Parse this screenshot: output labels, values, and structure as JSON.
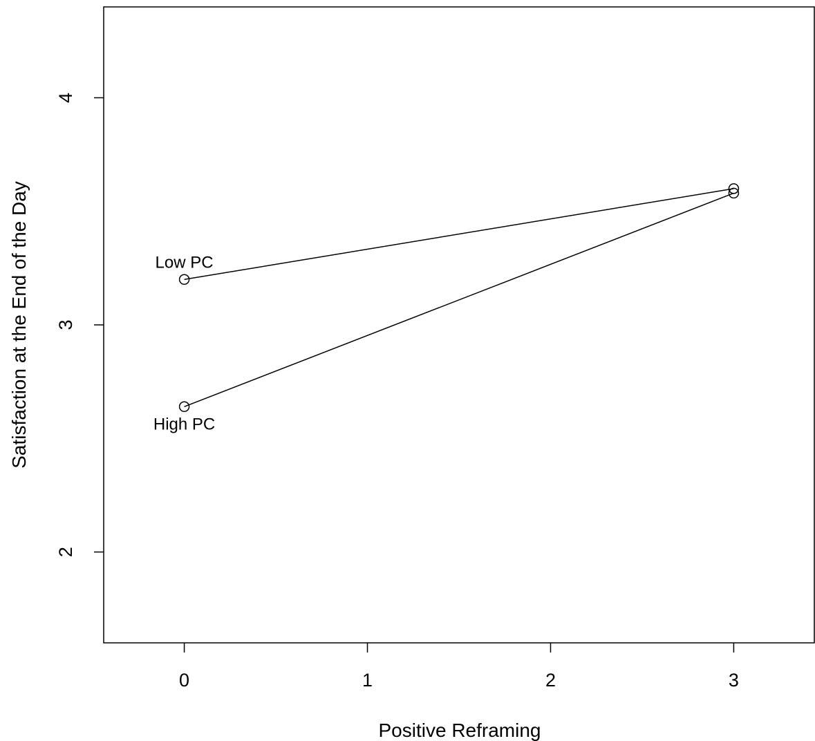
{
  "chart_data": {
    "type": "line",
    "title": "",
    "xlabel": "Positive Reframing",
    "ylabel": "Satisfaction at the End of the Day",
    "xlim": [
      -0.44,
      3.44
    ],
    "ylim": [
      1.6,
      4.4
    ],
    "x_ticks": [
      0,
      1,
      2,
      3
    ],
    "y_ticks": [
      2,
      3,
      4
    ],
    "grid": false,
    "legend": "none",
    "marker": "open-circle",
    "line_color": "#000000",
    "series": [
      {
        "name": "Low PC",
        "points": [
          {
            "x": 0,
            "y": 3.2
          },
          {
            "x": 3,
            "y": 3.6
          }
        ],
        "label_position": "above"
      },
      {
        "name": "High PC",
        "points": [
          {
            "x": 0,
            "y": 2.64
          },
          {
            "x": 3,
            "y": 3.58
          }
        ],
        "label_position": "below"
      }
    ]
  }
}
